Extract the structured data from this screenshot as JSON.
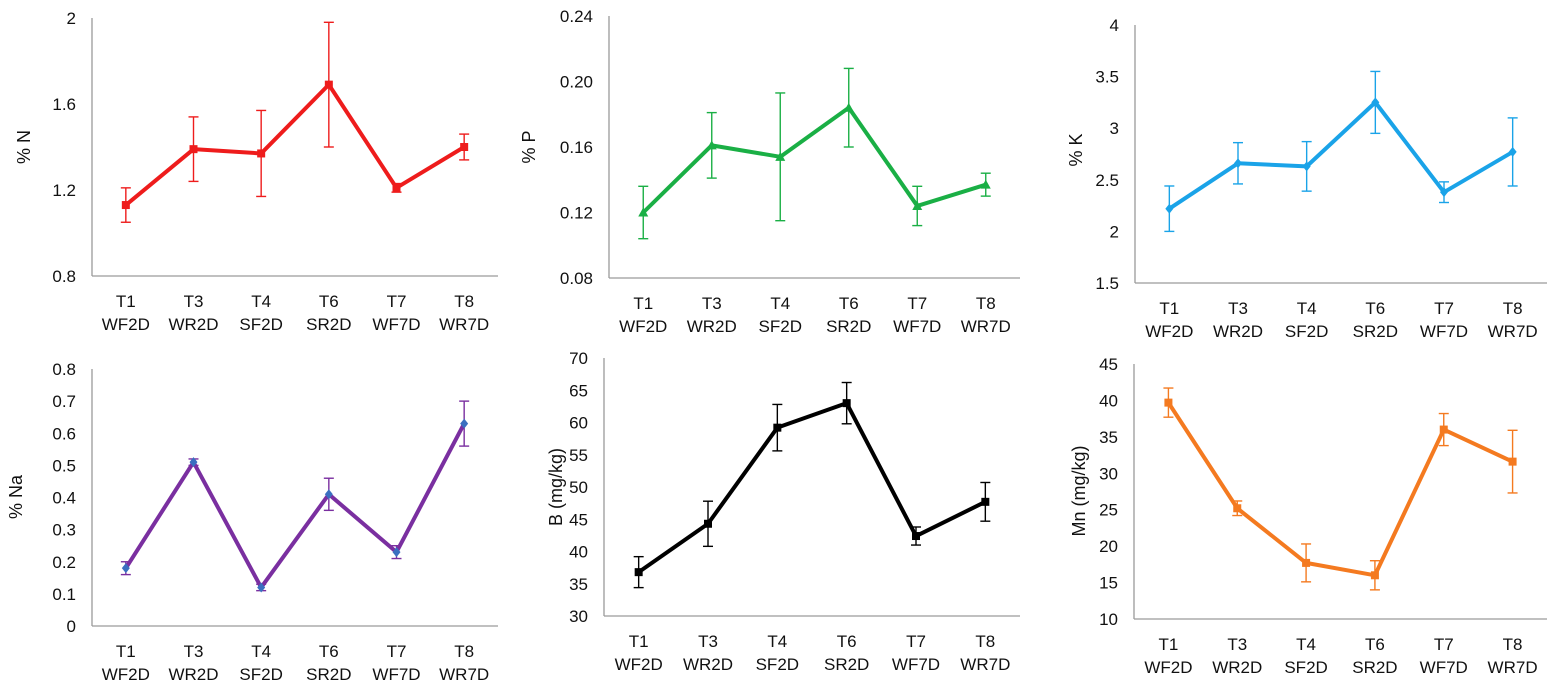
{
  "chart_data": [
    {
      "type": "line",
      "ylabel": "% N",
      "ylim": [
        0.8,
        2
      ],
      "yticks": [
        "0.8",
        "1.2",
        "1.6",
        "2"
      ],
      "categories": [
        [
          "T1",
          "WF2D"
        ],
        [
          "T3",
          "WR2D"
        ],
        [
          "T4",
          "SF2D"
        ],
        [
          "T6",
          "SR2D"
        ],
        [
          "T7",
          "WF7D"
        ],
        [
          "T8",
          "WR7D"
        ]
      ],
      "color": "#ee1c1c",
      "marker": "square",
      "series": [
        {
          "values": [
            1.13,
            1.39,
            1.37,
            1.69,
            1.21,
            1.4
          ],
          "error": [
            0.08,
            0.15,
            0.2,
            0.29,
            0.02,
            0.06
          ]
        }
      ]
    },
    {
      "type": "line",
      "ylabel": "% P",
      "ylim": [
        0.08,
        0.24
      ],
      "yticks": [
        "0.08",
        "0.12",
        "0.16",
        "0.20",
        "0.24"
      ],
      "categories": [
        [
          "T1",
          "WF2D"
        ],
        [
          "T3",
          "WR2D"
        ],
        [
          "T4",
          "SF2D"
        ],
        [
          "T6",
          "SR2D"
        ],
        [
          "T7",
          "WF7D"
        ],
        [
          "T8",
          "WR7D"
        ]
      ],
      "color": "#1aaf45",
      "marker": "triangle",
      "series": [
        {
          "values": [
            0.12,
            0.161,
            0.154,
            0.184,
            0.124,
            0.137
          ],
          "error": [
            0.016,
            0.02,
            0.039,
            0.024,
            0.012,
            0.007
          ]
        }
      ]
    },
    {
      "type": "line",
      "ylabel": "% K",
      "ylim": [
        1.5,
        4
      ],
      "yticks": [
        "1.5",
        "2",
        "2.5",
        "3",
        "3.5",
        "4"
      ],
      "categories": [
        [
          "T1",
          "WF2D"
        ],
        [
          "T3",
          "WR2D"
        ],
        [
          "T4",
          "SF2D"
        ],
        [
          "T6",
          "SR2D"
        ],
        [
          "T7",
          "WF7D"
        ],
        [
          "T8",
          "WR7D"
        ]
      ],
      "color": "#1aa3e8",
      "marker": "diamond",
      "series": [
        {
          "values": [
            2.22,
            2.66,
            2.63,
            3.25,
            2.38,
            2.77
          ],
          "error": [
            0.22,
            0.2,
            0.24,
            0.3,
            0.1,
            0.33
          ]
        }
      ]
    },
    {
      "type": "line",
      "ylabel": "% Na",
      "ylim": [
        0,
        0.8
      ],
      "yticks": [
        "0",
        "0.1",
        "0.2",
        "0.3",
        "0.4",
        "0.5",
        "0.6",
        "0.7",
        "0.8"
      ],
      "categories": [
        [
          "T1",
          "WF2D"
        ],
        [
          "T3",
          "WR2D"
        ],
        [
          "T4",
          "SF2D"
        ],
        [
          "T6",
          "SR2D"
        ],
        [
          "T7",
          "WF7D"
        ],
        [
          "T8",
          "WR7D"
        ]
      ],
      "color": "#7a2fa0",
      "marker": "diamond",
      "marker_color": "#3a6fc0",
      "series": [
        {
          "values": [
            0.18,
            0.51,
            0.12,
            0.41,
            0.23,
            0.63
          ],
          "error": [
            0.02,
            0.01,
            0.01,
            0.05,
            0.02,
            0.07
          ]
        }
      ]
    },
    {
      "type": "line",
      "ylabel": "B (mg/kg)",
      "ylim": [
        30,
        70
      ],
      "yticks": [
        "30",
        "35",
        "40",
        "45",
        "50",
        "55",
        "60",
        "65",
        "70"
      ],
      "categories": [
        [
          "T1",
          "WF2D"
        ],
        [
          "T3",
          "WR2D"
        ],
        [
          "T4",
          "SF2D"
        ],
        [
          "T6",
          "SR2D"
        ],
        [
          "T7",
          "WF7D"
        ],
        [
          "T8",
          "WR7D"
        ]
      ],
      "color": "#000000",
      "marker": "square",
      "series": [
        {
          "values": [
            36.8,
            44.3,
            59.2,
            63.0,
            42.4,
            47.7
          ],
          "error": [
            2.4,
            3.5,
            3.6,
            3.2,
            1.4,
            3.0
          ]
        }
      ]
    },
    {
      "type": "line",
      "ylabel": "Mn (mg/kg)",
      "ylim": [
        10,
        45
      ],
      "yticks": [
        "10",
        "15",
        "20",
        "25",
        "30",
        "35",
        "40",
        "45"
      ],
      "categories": [
        [
          "T1",
          "WF2D"
        ],
        [
          "T3",
          "WR2D"
        ],
        [
          "T4",
          "SF2D"
        ],
        [
          "T6",
          "SR2D"
        ],
        [
          "T7",
          "WF7D"
        ],
        [
          "T8",
          "WR7D"
        ]
      ],
      "color": "#f47a20",
      "marker": "square",
      "series": [
        {
          "values": [
            39.7,
            25.2,
            17.7,
            16.0,
            36.0,
            31.6
          ],
          "error": [
            2.0,
            1.0,
            2.6,
            2.0,
            2.2,
            4.3
          ]
        }
      ]
    }
  ]
}
